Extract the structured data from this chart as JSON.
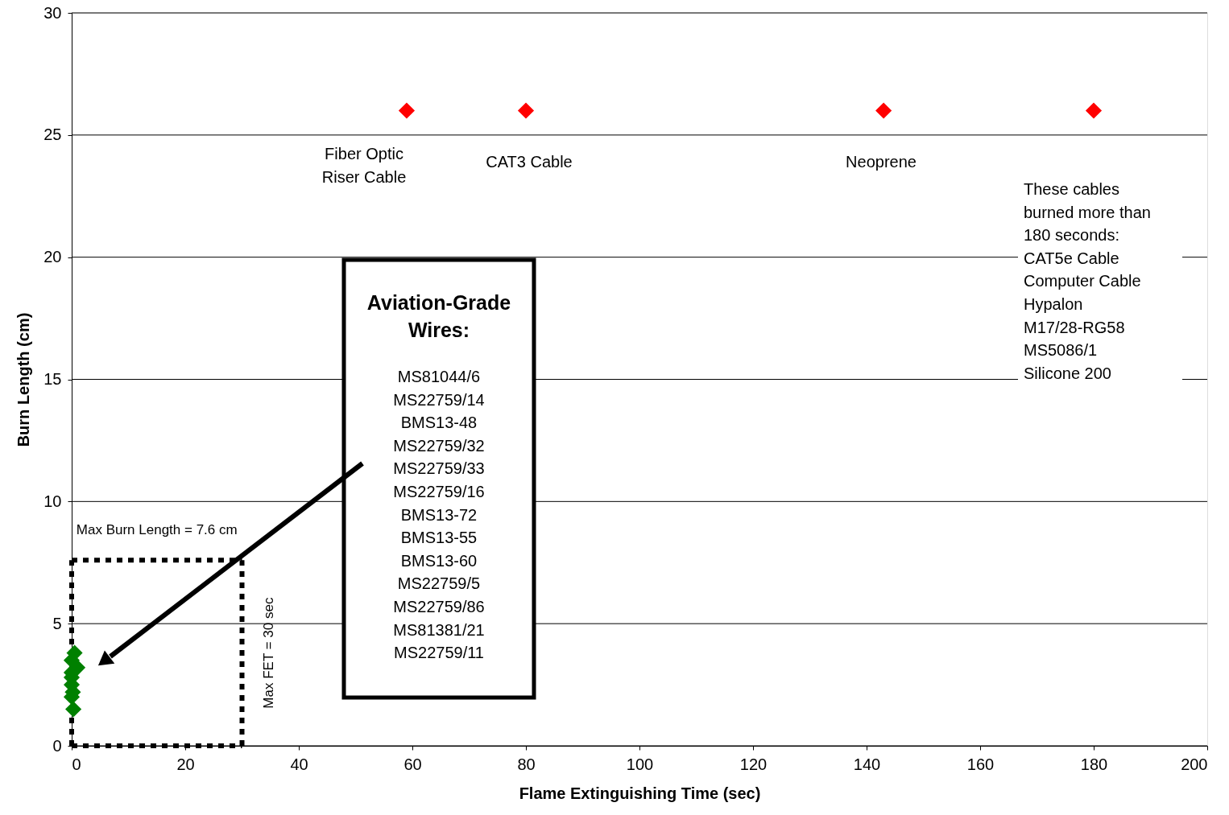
{
  "chart_data": {
    "type": "scatter",
    "xlabel": "Flame Extinguishing Time (sec)",
    "ylabel": "Burn Length (cm)",
    "xlim": [
      0,
      200
    ],
    "ylim": [
      0,
      30
    ],
    "xticks": [
      0,
      20,
      40,
      60,
      80,
      100,
      120,
      140,
      160,
      180,
      200
    ],
    "yticks": [
      0,
      5,
      10,
      15,
      20,
      25,
      30
    ],
    "grid": "y",
    "marker": "diamond",
    "series": [
      {
        "color": "#008000",
        "x": [
          0.5,
          0,
          1,
          0,
          0,
          0,
          0.2,
          0,
          0.3
        ],
        "values": [
          3.8,
          3.5,
          3.2,
          3.0,
          2.8,
          2.5,
          2.2,
          2.0,
          1.5
        ]
      },
      {
        "color": "#ff0000",
        "x": [
          59,
          80,
          143,
          180
        ],
        "values": [
          26,
          26,
          26,
          26
        ]
      }
    ],
    "ref_lines": [
      {
        "axis": "y",
        "value": 7.6,
        "label": "Max Burn Length = 7.6 cm",
        "line_style": "dotted",
        "color": "#000000"
      },
      {
        "axis": "x",
        "value": 30,
        "label": "Max  FET = 30 sec",
        "line_style": "dotted",
        "color": "#000000"
      }
    ],
    "annotations": [
      "Fiber Optic\nRiser Cable",
      "CAT3 Cable",
      "Neoprene",
      "These cables\nburned more than\n180 seconds:\n\nCAT5e Cable\nComputer Cable\nHypalon\nM17/28-RG58\nMS5086/1\nSilicone 200",
      "Aviation-Grade\nWires:",
      "MS81044/6\nMS22759/14\nBMS13-48\nMS22759/32\nMS22759/33\nMS22759/16\nBMS13-72\nBMS13-55\nBMS13-60\nMS22759/5\nMS22759/86\nMS81381/21\nMS22759/11"
    ]
  }
}
